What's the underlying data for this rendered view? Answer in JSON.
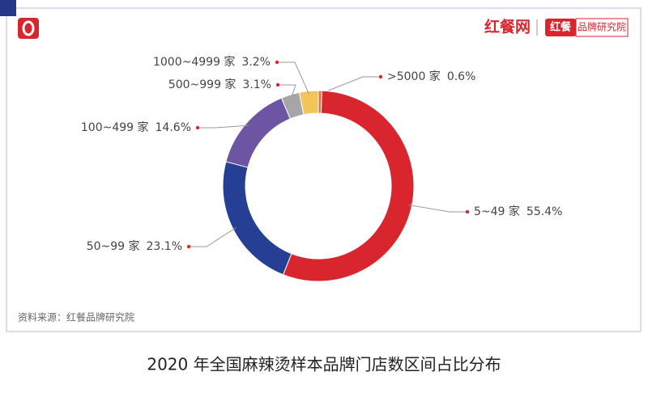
{
  "chart_data": {
    "type": "donut",
    "title": "2020 年全国麻辣烫样本品牌门店数区间占比分布",
    "source": "资料来源：红餐品牌研究院",
    "brand": {
      "name": "红餐网",
      "badge": "红餐",
      "institute": "品牌研究院"
    },
    "categories": [
      ">5000 家",
      "5~49 家",
      "50~99 家",
      "100~499 家",
      "500~999 家",
      "1000~4999 家"
    ],
    "values": [
      0.6,
      55.4,
      23.1,
      14.6,
      3.1,
      3.2
    ],
    "value_labels": [
      "0.6%",
      "55.4%",
      "23.1%",
      "14.6%",
      "3.1%",
      "3.2%"
    ],
    "colors": [
      "#e0734a",
      "#d9262e",
      "#253f94",
      "#6e55a3",
      "#a6a6a8",
      "#f2c55a"
    ]
  }
}
